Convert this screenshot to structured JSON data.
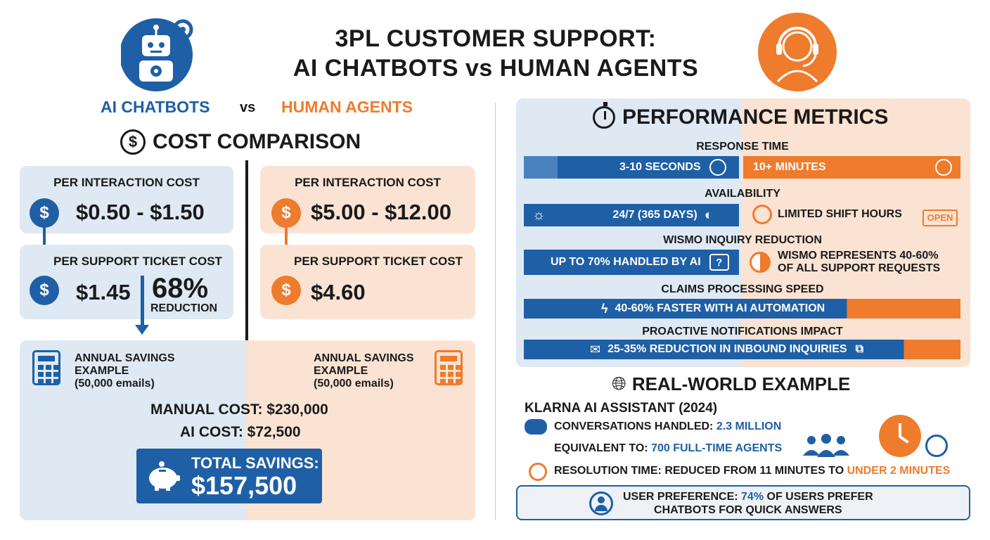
{
  "header": {
    "title_line1": "3PL CUSTOMER SUPPORT:",
    "title_line2": "AI CHATBOTS vs HUMAN AGENTS",
    "ai_label": "AI CHATBOTS",
    "vs_label": "vs",
    "human_label": "HUMAN AGENTS"
  },
  "colors": {
    "blue": "#1f5fa6",
    "orange": "#ef7b2d",
    "light_blue": "#dfe9f4",
    "light_orange": "#fbe3d3"
  },
  "cost": {
    "heading": "COST COMPARISON",
    "ai": {
      "per_interaction_title": "PER INTERACTION COST",
      "per_interaction_value": "$0.50 - $1.50",
      "per_ticket_title": "PER SUPPORT TICKET COST",
      "per_ticket_value": "$1.45",
      "reduction_percent": "68%",
      "reduction_label": "REDUCTION"
    },
    "human": {
      "per_interaction_title": "PER INTERACTION COST",
      "per_interaction_value": "$5.00 - $12.00",
      "per_ticket_title": "PER SUPPORT TICKET COST",
      "per_ticket_value": "$4.60"
    },
    "annual": {
      "ai_line1": "ANNUAL SAVINGS",
      "ai_line2": "EXAMPLE",
      "ai_line3": "(50,000 emails)",
      "human_line1": "ANNUAL SAVINGS",
      "human_line2": "EXAMPLE",
      "human_line3": "(50,000 emails)",
      "manual_cost": "MANUAL COST: $230,000",
      "ai_cost": "AI COST: $72,500",
      "total_label": "TOTAL SAVINGS:",
      "total_value": "$157,500"
    }
  },
  "metrics": {
    "heading": "PERFORMANCE METRICS",
    "response_time": {
      "label": "RESPONSE TIME",
      "ai": "3-10 SECONDS",
      "human": "10+ MINUTES"
    },
    "availability": {
      "label": "AVAILABILITY",
      "ai": "24/7 (365 DAYS)",
      "human": "LIMITED SHIFT HOURS",
      "sign": "OPEN"
    },
    "wismo": {
      "label": "WISMO INQUIRY REDUCTION",
      "ai": "UP TO 70% HANDLED BY AI",
      "human_line1": "WISMO REPRESENTS 40-60%",
      "human_line2": "OF ALL SUPPORT REQUESTS"
    },
    "claims": {
      "label": "CLAIMS PROCESSING SPEED",
      "value": "40-60% FASTER WITH AI AUTOMATION"
    },
    "proactive": {
      "label": "PROACTIVE NOTIFICATIONS IMPACT",
      "value": "25-35% REDUCTION IN INBOUND INQUIRIES"
    }
  },
  "real_world": {
    "heading": "REAL-WORLD EXAMPLE",
    "company": "KLARNA AI ASSISTANT (2024)",
    "conv_label": "CONVERSATIONS HANDLED: ",
    "conv_value": "2.3 MILLION",
    "equiv_label": "EQUIVALENT TO: ",
    "equiv_value": "700 FULL-TIME AGENTS",
    "res_label": "RESOLUTION TIME: REDUCED FROM 11 MINUTES TO ",
    "res_value": "UNDER 2 MINUTES",
    "pref_label": "USER PREFERENCE: ",
    "pref_value": "74%",
    "pref_rest": " OF USERS PREFER",
    "pref_line2": "CHATBOTS FOR QUICK ANSWERS"
  }
}
